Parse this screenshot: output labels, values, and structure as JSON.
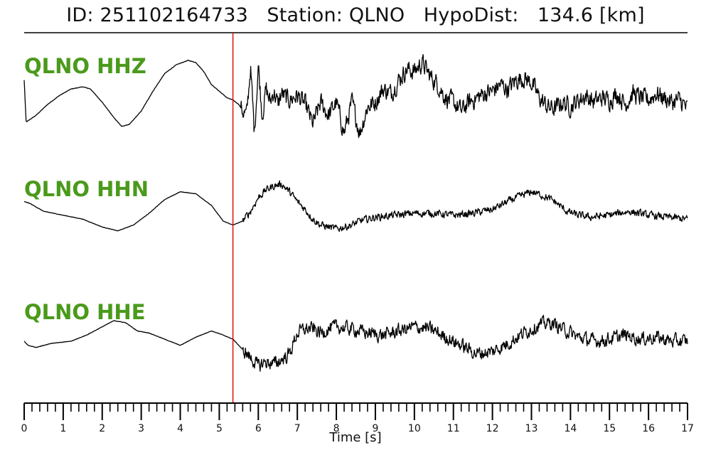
{
  "title": "ID: 251102164733   Station: QLNO   HypoDist:   134.6 [km]",
  "colors": {
    "trace": "#000000",
    "label": "#4a9a1b",
    "pick": "#e00000"
  },
  "chart_data": {
    "type": "line",
    "xlabel": "Time [s]",
    "xlim": [
      0,
      17
    ],
    "x_tick_labels": [
      "0",
      "1",
      "2",
      "3",
      "4",
      "5",
      "6",
      "7",
      "8",
      "9",
      "10",
      "11",
      "12",
      "13",
      "14",
      "15",
      "16",
      "17"
    ],
    "minor_tick_step": 0.2,
    "pick_time": 5.35,
    "series": [
      {
        "name": "QLNO HHZ",
        "t": [
          0,
          0.05,
          0.3,
          0.6,
          0.9,
          1.2,
          1.5,
          1.7,
          2.0,
          2.3,
          2.5,
          2.7,
          3.0,
          3.3,
          3.6,
          3.9,
          4.2,
          4.4,
          4.6,
          4.8,
          5.0,
          5.2,
          5.35,
          5.5,
          5.6,
          5.7,
          5.8,
          5.9,
          6.0,
          6.1,
          6.2,
          6.3,
          6.4,
          6.5,
          6.6,
          6.7,
          6.8,
          7.0,
          7.2,
          7.4,
          7.6,
          7.8,
          8.0,
          8.2,
          8.4,
          8.6,
          8.8,
          9.0,
          9.2,
          9.4,
          9.6,
          9.8,
          10.0,
          10.2,
          10.4,
          10.6,
          10.8,
          11.0,
          11.2,
          11.4,
          11.6,
          11.8,
          12.0,
          12.2,
          12.4,
          12.6,
          12.8,
          13.0,
          13.2,
          13.4,
          13.6,
          13.8,
          14.0,
          14.2,
          14.4,
          14.6,
          14.8,
          15.0,
          15.2,
          15.4,
          15.6,
          15.8,
          16.0,
          16.2,
          16.4,
          16.6,
          16.8,
          17.0
        ],
        "amp": [
          0.6,
          -0.35,
          -0.2,
          0.05,
          0.25,
          0.4,
          0.45,
          0.4,
          0.1,
          -0.25,
          -0.45,
          -0.4,
          -0.1,
          0.35,
          0.75,
          0.95,
          1.05,
          1.0,
          0.8,
          0.5,
          0.35,
          0.2,
          0.15,
          0.05,
          -0.1,
          -0.2,
          0.9,
          -0.6,
          0.95,
          -0.2,
          0.4,
          0.1,
          0.35,
          0.05,
          0.3,
          0.2,
          0.15,
          0.25,
          0.05,
          -0.4,
          0.1,
          -0.2,
          0.1,
          -0.6,
          0.1,
          -0.6,
          0.0,
          0.1,
          0.4,
          0.3,
          0.6,
          0.85,
          0.8,
          1.0,
          0.7,
          0.5,
          0.2,
          0.1,
          -0.1,
          0.1,
          0.2,
          0.3,
          0.35,
          0.5,
          0.4,
          0.6,
          0.65,
          0.55,
          0.2,
          0.0,
          -0.05,
          0.1,
          0.0,
          0.15,
          0.25,
          0.1,
          0.2,
          0.15,
          0.3,
          0.05,
          0.3,
          0.2,
          0.15,
          0.3,
          0.2,
          0.1,
          0.15,
          -0.05
        ],
        "noise_start": 5.55,
        "noise_amp": 0.18
      },
      {
        "name": "QLNO HHN",
        "t": [
          0,
          0.15,
          0.5,
          1.0,
          1.5,
          2.0,
          2.4,
          2.8,
          3.2,
          3.6,
          4.0,
          4.4,
          4.8,
          5.1,
          5.35,
          5.6,
          5.8,
          6.0,
          6.2,
          6.4,
          6.6,
          6.8,
          7.0,
          7.2,
          7.4,
          7.6,
          7.8,
          8.0,
          8.2,
          8.4,
          8.6,
          8.8,
          9.0,
          9.5,
          10.0,
          10.5,
          11.0,
          11.5,
          12.0,
          12.5,
          13.0,
          13.3,
          13.6,
          13.9,
          14.2,
          14.5,
          15.0,
          15.5,
          16.0,
          16.5,
          17.0
        ],
        "amp": [
          0.3,
          0.25,
          0.05,
          -0.05,
          -0.15,
          -0.35,
          -0.45,
          -0.3,
          0.0,
          0.35,
          0.55,
          0.5,
          0.2,
          -0.2,
          -0.3,
          -0.2,
          0.05,
          0.4,
          0.6,
          0.7,
          0.75,
          0.55,
          0.3,
          0.1,
          -0.15,
          -0.3,
          -0.35,
          -0.4,
          -0.35,
          -0.3,
          -0.2,
          -0.15,
          -0.1,
          -0.05,
          0.0,
          0.0,
          -0.05,
          0.0,
          0.1,
          0.35,
          0.55,
          0.45,
          0.3,
          0.05,
          -0.05,
          -0.1,
          -0.05,
          0.05,
          -0.05,
          -0.1,
          -0.15
        ],
        "noise_start": 5.6,
        "noise_amp": 0.08
      },
      {
        "name": "QLNO HHE",
        "t": [
          0,
          0.1,
          0.3,
          0.7,
          1.2,
          1.6,
          2.0,
          2.3,
          2.6,
          2.9,
          3.2,
          3.6,
          4.0,
          4.4,
          4.8,
          5.1,
          5.35,
          5.6,
          5.8,
          6.0,
          6.2,
          6.4,
          6.6,
          6.8,
          7.0,
          7.2,
          7.4,
          7.6,
          7.8,
          8.0,
          8.4,
          8.8,
          9.2,
          9.6,
          10.0,
          10.4,
          10.8,
          11.2,
          11.6,
          12.0,
          12.4,
          12.8,
          13.2,
          13.5,
          13.8,
          14.2,
          14.6,
          15.0,
          15.4,
          15.8,
          16.2,
          16.6,
          17.0
        ],
        "amp": [
          0.0,
          -0.1,
          -0.15,
          -0.05,
          0.0,
          0.15,
          0.35,
          0.5,
          0.45,
          0.25,
          0.2,
          0.05,
          -0.1,
          0.1,
          0.25,
          0.15,
          0.05,
          -0.2,
          -0.4,
          -0.6,
          -0.5,
          -0.55,
          -0.45,
          -0.3,
          0.2,
          0.3,
          0.3,
          0.2,
          0.3,
          0.35,
          0.3,
          0.2,
          0.15,
          0.25,
          0.35,
          0.3,
          0.1,
          -0.1,
          -0.3,
          -0.25,
          -0.05,
          0.2,
          0.4,
          0.45,
          0.3,
          0.1,
          0.0,
          0.05,
          0.15,
          0.05,
          0.1,
          0.0,
          0.0
        ],
        "noise_start": 5.6,
        "noise_amp": 0.14
      }
    ]
  }
}
